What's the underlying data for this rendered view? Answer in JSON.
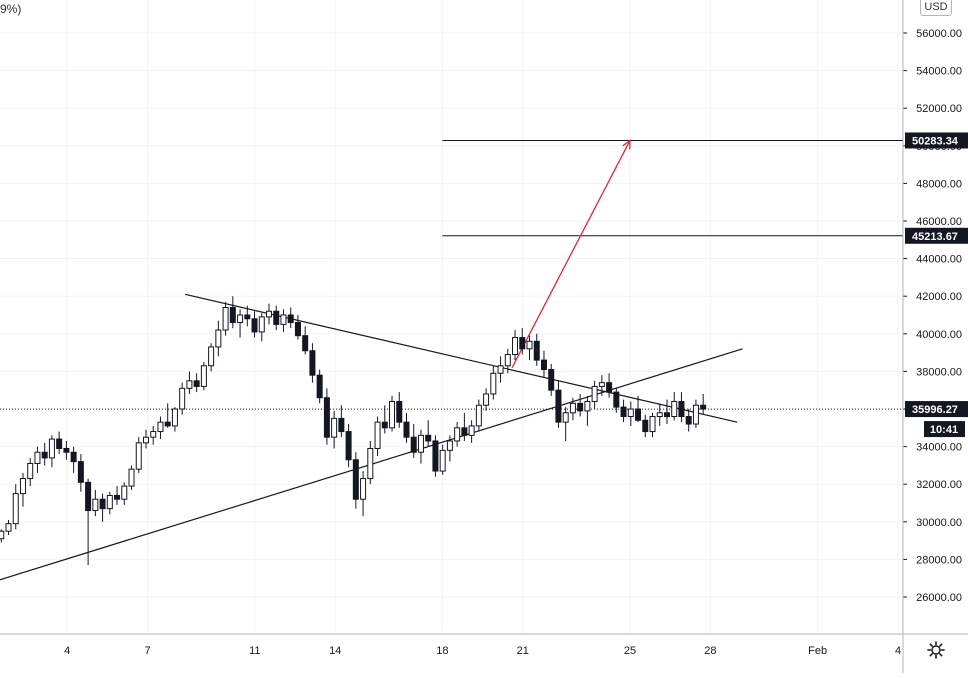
{
  "header": {
    "top_left_fragment": "9%)",
    "currency": "USD"
  },
  "colors": {
    "candle": "#131722",
    "trendline": "#131722",
    "arrow": "#e8262b",
    "grid": "#f0f3fa",
    "axis_text": "#131722",
    "label_bg": "#131722",
    "label_text": "#ffffff"
  },
  "icons": {
    "settings": "gear-icon"
  },
  "chart_data": {
    "type": "candlestick",
    "x_tick_labels": [
      "4",
      "7",
      "11",
      "14",
      "18",
      "21",
      "25",
      "28",
      "Feb",
      "4"
    ],
    "y_tick_labels": [
      "56000.00",
      "54000.00",
      "52000.00",
      "50000.00",
      "48000.00",
      "46000.00",
      "44000.00",
      "42000.00",
      "40000.00",
      "38000.00",
      "36000.00",
      "34000.00",
      "32000.00",
      "30000.00",
      "28000.00",
      "26000.00"
    ],
    "ylim": [
      24300,
      57800
    ],
    "grid": true,
    "horizontal_levels": [
      {
        "value": 50283.34,
        "label": "50283.34"
      },
      {
        "value": 45213.67,
        "label": "45213.67"
      }
    ],
    "last_price": {
      "value": 35996.27,
      "label": "35996.27",
      "countdown": "10:41"
    },
    "trendlines": [
      {
        "name": "resistance",
        "start": {
          "day": 8.4,
          "price": 42100
        },
        "end": {
          "day": 29.0,
          "price": 35300
        }
      },
      {
        "name": "support",
        "start": {
          "day": 1.0,
          "price": 26700
        },
        "end": {
          "day": 29.2,
          "price": 39200
        }
      }
    ],
    "projection_arrow": {
      "start": {
        "day": 20.6,
        "price": 38200
      },
      "end": {
        "day": 25.0,
        "price": 50283.34
      }
    },
    "candles": [
      [
        1.0,
        29000,
        29400,
        28700,
        29200
      ],
      [
        1.27,
        29200,
        29500,
        28900,
        29100
      ],
      [
        1.54,
        29100,
        29600,
        28900,
        29500
      ],
      [
        1.81,
        29500,
        30100,
        29300,
        29900
      ],
      [
        2.08,
        29900,
        32000,
        29600,
        31500
      ],
      [
        2.35,
        31500,
        32600,
        30800,
        32300
      ],
      [
        2.62,
        32300,
        33400,
        31900,
        33100
      ],
      [
        2.89,
        33100,
        34000,
        32600,
        33700
      ],
      [
        3.16,
        33700,
        34200,
        33000,
        33400
      ],
      [
        3.43,
        33400,
        34600,
        32900,
        34400
      ],
      [
        3.7,
        34400,
        34800,
        33600,
        33900
      ],
      [
        3.97,
        33900,
        34300,
        33300,
        33700
      ],
      [
        4.24,
        33700,
        34000,
        32600,
        33200
      ],
      [
        4.51,
        33200,
        33600,
        31600,
        32100
      ],
      [
        4.78,
        32100,
        32300,
        27700,
        30600
      ],
      [
        5.05,
        30600,
        31700,
        30300,
        31200
      ],
      [
        5.32,
        31200,
        31500,
        30000,
        30700
      ],
      [
        5.59,
        30700,
        31600,
        30400,
        31400
      ],
      [
        5.86,
        31400,
        31900,
        30900,
        31200
      ],
      [
        6.13,
        31200,
        32100,
        30900,
        31900
      ],
      [
        6.4,
        31900,
        33000,
        31700,
        32800
      ],
      [
        6.67,
        32800,
        34500,
        32600,
        34200
      ],
      [
        6.94,
        34200,
        34900,
        33900,
        34500
      ],
      [
        7.21,
        34500,
        35100,
        34100,
        34800
      ],
      [
        7.48,
        34800,
        35600,
        34400,
        35300
      ],
      [
        7.75,
        35300,
        36300,
        35000,
        35100
      ],
      [
        8.02,
        35100,
        36100,
        34800,
        36000
      ],
      [
        8.29,
        36000,
        37400,
        35700,
        37100
      ],
      [
        8.56,
        37100,
        38000,
        36800,
        37500
      ],
      [
        8.83,
        37500,
        37900,
        36900,
        37200
      ],
      [
        9.1,
        37200,
        38500,
        37000,
        38300
      ],
      [
        9.37,
        38300,
        39500,
        38000,
        39300
      ],
      [
        9.64,
        39300,
        40700,
        38800,
        40200
      ],
      [
        9.91,
        40200,
        41700,
        39900,
        41400
      ],
      [
        10.18,
        41400,
        42000,
        40300,
        40600
      ],
      [
        10.45,
        40600,
        41300,
        39800,
        41000
      ],
      [
        10.72,
        41000,
        41500,
        40400,
        40800
      ],
      [
        10.99,
        40800,
        41200,
        39800,
        40100
      ],
      [
        11.26,
        40100,
        41100,
        39600,
        40900
      ],
      [
        11.53,
        40900,
        41600,
        40500,
        41200
      ],
      [
        11.8,
        41200,
        41500,
        40200,
        40500
      ],
      [
        12.07,
        40500,
        41300,
        40100,
        41000
      ],
      [
        12.34,
        41000,
        41400,
        40300,
        40600
      ],
      [
        12.61,
        40600,
        41000,
        39700,
        39900
      ],
      [
        12.88,
        39900,
        40400,
        38900,
        39100
      ],
      [
        13.15,
        39100,
        39500,
        37400,
        37800
      ],
      [
        13.42,
        37800,
        38100,
        36300,
        36600
      ],
      [
        13.69,
        36600,
        37100,
        34100,
        34500
      ],
      [
        13.96,
        34500,
        35900,
        33900,
        35500
      ],
      [
        14.23,
        35500,
        36200,
        34500,
        34800
      ],
      [
        14.5,
        34800,
        35200,
        32900,
        33300
      ],
      [
        14.77,
        33300,
        33700,
        30700,
        31200
      ],
      [
        15.04,
        31200,
        32700,
        30300,
        32300
      ],
      [
        15.31,
        32300,
        34300,
        32000,
        33900
      ],
      [
        15.58,
        33900,
        35600,
        33500,
        35300
      ],
      [
        15.85,
        35300,
        36200,
        34700,
        35000
      ],
      [
        16.12,
        35000,
        36700,
        34800,
        36400
      ],
      [
        16.39,
        36400,
        36900,
        35000,
        35300
      ],
      [
        16.66,
        35300,
        35800,
        34200,
        34500
      ],
      [
        16.93,
        34500,
        35200,
        33400,
        33700
      ],
      [
        17.2,
        33700,
        34900,
        33100,
        34600
      ],
      [
        17.47,
        34600,
        35400,
        34000,
        34300
      ],
      [
        17.74,
        34300,
        34600,
        32400,
        32700
      ],
      [
        18.01,
        32700,
        34100,
        32500,
        33800
      ],
      [
        18.28,
        33800,
        34600,
        33200,
        34300
      ],
      [
        18.55,
        34300,
        35300,
        34000,
        35000
      ],
      [
        18.82,
        35000,
        35800,
        34300,
        34600
      ],
      [
        19.09,
        34600,
        35400,
        34200,
        35100
      ],
      [
        19.36,
        35100,
        36500,
        34800,
        36200
      ],
      [
        19.63,
        36200,
        37100,
        35900,
        36800
      ],
      [
        19.9,
        36800,
        38300,
        36500,
        37900
      ],
      [
        20.17,
        37900,
        38800,
        37400,
        38300
      ],
      [
        20.44,
        38300,
        39200,
        37900,
        38900
      ],
      [
        20.71,
        38900,
        40200,
        38600,
        39800
      ],
      [
        20.98,
        39800,
        40300,
        38900,
        39200
      ],
      [
        21.25,
        39200,
        39900,
        38600,
        39600
      ],
      [
        21.52,
        39600,
        40000,
        38300,
        38600
      ],
      [
        21.79,
        38600,
        39100,
        37700,
        38100
      ],
      [
        22.06,
        38100,
        38400,
        36700,
        37000
      ],
      [
        22.33,
        37000,
        37500,
        35000,
        35300
      ],
      [
        22.6,
        35300,
        36100,
        34300,
        35800
      ],
      [
        22.87,
        35800,
        36600,
        35400,
        36300
      ],
      [
        23.14,
        36300,
        36800,
        35600,
        35900
      ],
      [
        23.41,
        35900,
        36700,
        35100,
        36400
      ],
      [
        23.68,
        36400,
        37500,
        36000,
        37200
      ],
      [
        23.95,
        37200,
        37800,
        36700,
        37400
      ],
      [
        24.22,
        37400,
        37900,
        36600,
        36900
      ],
      [
        24.49,
        36900,
        37100,
        35800,
        36100
      ],
      [
        24.76,
        36100,
        36500,
        35300,
        35600
      ],
      [
        25.03,
        35600,
        36400,
        35100,
        36000
      ],
      [
        25.3,
        36000,
        36700,
        35300,
        35400
      ],
      [
        25.57,
        35400,
        35700,
        34500,
        34800
      ],
      [
        25.84,
        34800,
        35800,
        34500,
        35600
      ],
      [
        26.11,
        35600,
        36300,
        35100,
        35800
      ],
      [
        26.38,
        35800,
        36500,
        35200,
        35600
      ],
      [
        26.65,
        35600,
        36900,
        35400,
        36400
      ],
      [
        26.92,
        36400,
        36900,
        35300,
        35600
      ],
      [
        27.19,
        35600,
        36000,
        34800,
        35200
      ],
      [
        27.46,
        35200,
        36500,
        35000,
        36200
      ],
      [
        27.73,
        36200,
        36800,
        35700,
        35996
      ]
    ]
  }
}
